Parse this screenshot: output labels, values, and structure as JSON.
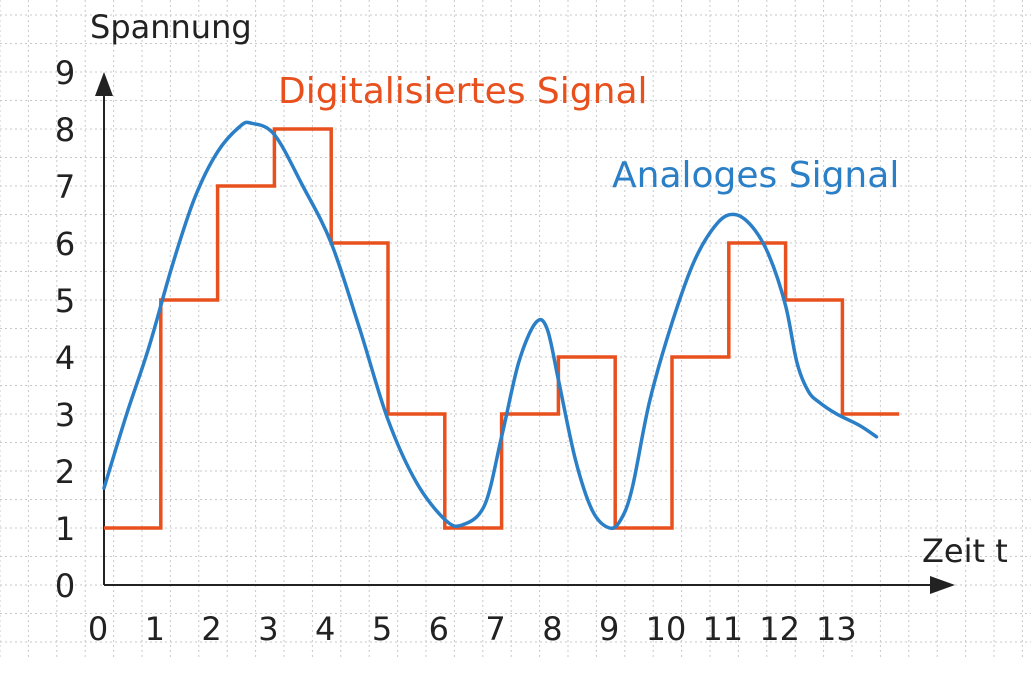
{
  "chart_data": {
    "type": "line",
    "title": "",
    "xlabel": "Zeit t",
    "ylabel": "Spannung",
    "xlim": [
      0,
      14
    ],
    "ylim": [
      0,
      9
    ],
    "x_ticks": [
      "0",
      "1",
      "2",
      "3",
      "4",
      "5",
      "6",
      "7",
      "8",
      "9",
      "10",
      "11",
      "12",
      "13"
    ],
    "y_ticks": [
      "0",
      "1",
      "2",
      "3",
      "4",
      "5",
      "6",
      "7",
      "8",
      "9"
    ],
    "grid": true,
    "colors": {
      "digital": "#e8501e",
      "analog": "#2b7fc6",
      "grid": "#c8c8c8",
      "axis": "#222222"
    },
    "series": [
      {
        "name": "Digitalisiertes Signal",
        "kind": "step",
        "x": [
          0,
          1,
          2,
          3,
          4,
          5,
          6,
          7,
          8,
          9,
          10,
          11,
          12,
          13,
          14
        ],
        "values": [
          1,
          5,
          7,
          8,
          6,
          3,
          1,
          3,
          4,
          1,
          4,
          6,
          5,
          3,
          3
        ]
      },
      {
        "name": "Analoges Signal",
        "kind": "smooth",
        "x": [
          0,
          0.4,
          0.8,
          1.2,
          1.6,
          2.0,
          2.4,
          2.6,
          3.0,
          3.5,
          4.0,
          4.5,
          5.0,
          5.5,
          6.0,
          6.3,
          6.7,
          7.0,
          7.3,
          7.6,
          7.8,
          8.0,
          8.3,
          8.6,
          8.9,
          9.1,
          9.3,
          9.6,
          10.0,
          10.4,
          10.8,
          11.1,
          11.4,
          11.7,
          12.0,
          12.2,
          12.4,
          12.6,
          12.9,
          13.3,
          13.6
        ],
        "values": [
          1.7,
          3.0,
          4.2,
          5.6,
          6.8,
          7.6,
          8.05,
          8.1,
          7.9,
          7.0,
          6.0,
          4.5,
          2.9,
          1.8,
          1.15,
          1.05,
          1.4,
          2.6,
          3.9,
          4.6,
          4.5,
          3.6,
          2.2,
          1.3,
          1.0,
          1.15,
          1.7,
          3.2,
          4.6,
          5.7,
          6.35,
          6.5,
          6.3,
          5.8,
          4.9,
          3.9,
          3.4,
          3.2,
          3.0,
          2.8,
          2.6
        ]
      }
    ]
  }
}
